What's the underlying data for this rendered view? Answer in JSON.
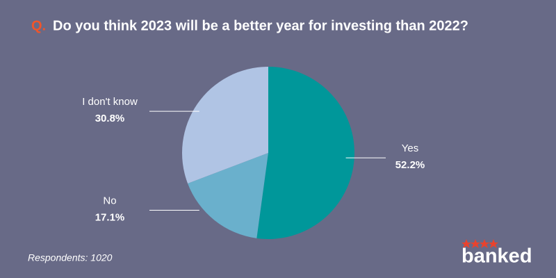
{
  "chart_data": {
    "type": "pie",
    "question_marker": "Q.",
    "title": "Do you think 2023 will be a better year for investing than 2022?",
    "categories": [
      "Yes",
      "No",
      "I don't know"
    ],
    "values": [
      52.2,
      17.1,
      30.8
    ],
    "value_labels": [
      "52.2%",
      "17.1%",
      "30.8%"
    ],
    "colors": [
      "#00979a",
      "#6ab0cc",
      "#b0c4e4"
    ],
    "footnote": "Respondents: 1020",
    "brand": "banked"
  }
}
